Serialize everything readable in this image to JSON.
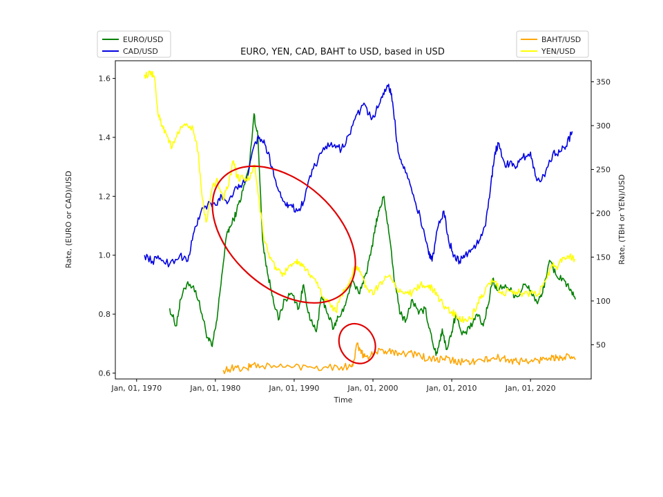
{
  "chart_data": {
    "type": "line",
    "title": "EURO, YEN, CAD, BAHT to USD, based in USD",
    "xlabel": "Time",
    "ylabel_left": "Rate, (EURO or CAD)/USD",
    "ylabel_right": "Rate, (TBH or YEN)/USD",
    "xlim": [
      1967.3,
      2027.7
    ],
    "ylim_left": [
      0.58,
      1.66
    ],
    "ylim_right": [
      11,
      374
    ],
    "x_ticks": [
      {
        "value": 1970,
        "label": "Jan, 01, 1970"
      },
      {
        "value": 1980,
        "label": "Jan, 01, 1980"
      },
      {
        "value": 1990,
        "label": "Jan, 01, 1990"
      },
      {
        "value": 2000,
        "label": "Jan, 01, 2000"
      },
      {
        "value": 2010,
        "label": "Jan, 01, 2010"
      },
      {
        "value": 2020,
        "label": "Jan, 01, 2020"
      }
    ],
    "y_left_ticks": [
      {
        "value": 0.6,
        "label": "0.6"
      },
      {
        "value": 0.8,
        "label": "0.8"
      },
      {
        "value": 1.0,
        "label": "1.0"
      },
      {
        "value": 1.2,
        "label": "1.2"
      },
      {
        "value": 1.4,
        "label": "1.4"
      },
      {
        "value": 1.6,
        "label": "1.6"
      }
    ],
    "y_right_ticks": [
      {
        "value": 50,
        "label": "50"
      },
      {
        "value": 100,
        "label": "100"
      },
      {
        "value": 150,
        "label": "150"
      },
      {
        "value": 200,
        "label": "200"
      },
      {
        "value": 250,
        "label": "250"
      },
      {
        "value": 300,
        "label": "300"
      },
      {
        "value": 350,
        "label": "350"
      }
    ],
    "grid": false,
    "legend_left": {
      "placement": "top-left, above plot",
      "entries": [
        "EURO/USD",
        "CAD/USD"
      ]
    },
    "legend_right": {
      "placement": "top-right, above plot",
      "entries": [
        "BAHT/USD",
        "YEN/USD"
      ]
    },
    "series": [
      {
        "name": "EURO/USD",
        "axis": "left",
        "color": "#008000",
        "x": [
          1974.2,
          1975.0,
          1975.6,
          1976.5,
          1977.5,
          1978.3,
          1979.0,
          1979.6,
          1980.2,
          1980.8,
          1981.5,
          1982.0,
          1982.7,
          1983.5,
          1984.3,
          1984.9,
          1985.4,
          1986.0,
          1986.6,
          1987.3,
          1988.0,
          1988.8,
          1989.7,
          1990.6,
          1991.2,
          1992.0,
          1992.8,
          1993.5,
          1994.3,
          1995.0,
          1995.6,
          1996.5,
          1997.3,
          1998.2,
          1999.0,
          1999.7,
          2000.3,
          2000.8,
          2001.4,
          2002.0,
          2002.8,
          2003.5,
          2004.2,
          2005.0,
          2005.8,
          2006.6,
          2007.3,
          2008.0,
          2008.4,
          2008.8,
          2009.3,
          2010.0,
          2010.5,
          2011.3,
          2012.3,
          2013.2,
          2014.0,
          2014.6,
          2015.2,
          2015.8,
          2016.8,
          2017.8,
          2018.4,
          2019.2,
          2020.0,
          2020.8,
          2021.4,
          2021.9,
          2022.5,
          2023.3,
          2024.2,
          2025.0,
          2025.7
        ],
        "values": [
          0.82,
          0.76,
          0.85,
          0.91,
          0.88,
          0.8,
          0.72,
          0.69,
          0.78,
          0.93,
          1.08,
          1.1,
          1.15,
          1.22,
          1.3,
          1.48,
          1.4,
          1.05,
          0.94,
          0.86,
          0.78,
          0.85,
          0.87,
          0.82,
          0.9,
          0.78,
          0.74,
          0.86,
          0.8,
          0.75,
          0.79,
          0.83,
          0.91,
          0.87,
          0.93,
          1.0,
          1.1,
          1.15,
          1.2,
          1.08,
          0.9,
          0.8,
          0.78,
          0.85,
          0.8,
          0.82,
          0.74,
          0.66,
          0.7,
          0.75,
          0.68,
          0.74,
          0.8,
          0.73,
          0.75,
          0.8,
          0.76,
          0.83,
          0.92,
          0.88,
          0.9,
          0.87,
          0.86,
          0.9,
          0.88,
          0.84,
          0.86,
          0.92,
          0.98,
          0.93,
          0.92,
          0.88,
          0.85
        ]
      },
      {
        "name": "CAD/USD",
        "axis": "left",
        "color": "#0000e0",
        "x": [
          1971.0,
          1972.0,
          1973.0,
          1974.2,
          1975.5,
          1976.5,
          1977.3,
          1978.2,
          1979.0,
          1980.0,
          1980.8,
          1981.6,
          1982.5,
          1983.3,
          1984.2,
          1985.0,
          1985.6,
          1986.4,
          1987.2,
          1988.0,
          1988.8,
          1989.5,
          1990.4,
          1991.2,
          1992.0,
          1993.0,
          1994.0,
          1995.0,
          1996.0,
          1997.0,
          1998.0,
          1999.0,
          1999.8,
          2000.6,
          2001.3,
          2002.0,
          2002.5,
          2003.2,
          2004.0,
          2005.0,
          2006.0,
          2007.0,
          2007.5,
          2008.3,
          2009.0,
          2009.6,
          2010.3,
          2011.0,
          2011.7,
          2012.6,
          2013.5,
          2014.3,
          2015.0,
          2015.5,
          2016.0,
          2016.8,
          2017.5,
          2018.2,
          2019.0,
          2020.0,
          2020.6,
          2021.3,
          2022.2,
          2022.9,
          2023.7,
          2024.5,
          2025.3
        ],
        "values": [
          1.0,
          0.98,
          0.99,
          0.97,
          1.0,
          0.98,
          1.08,
          1.15,
          1.17,
          1.17,
          1.2,
          1.18,
          1.23,
          1.23,
          1.28,
          1.38,
          1.4,
          1.37,
          1.3,
          1.22,
          1.18,
          1.17,
          1.15,
          1.18,
          1.27,
          1.32,
          1.37,
          1.37,
          1.36,
          1.41,
          1.48,
          1.51,
          1.46,
          1.5,
          1.55,
          1.58,
          1.52,
          1.35,
          1.3,
          1.21,
          1.13,
          1.02,
          0.98,
          1.1,
          1.15,
          1.05,
          1.0,
          0.98,
          1.0,
          1.02,
          1.05,
          1.1,
          1.25,
          1.35,
          1.38,
          1.3,
          1.32,
          1.3,
          1.33,
          1.35,
          1.27,
          1.25,
          1.3,
          1.35,
          1.35,
          1.37,
          1.42
        ]
      },
      {
        "name": "BAHT/USD",
        "axis": "right",
        "color": "#ffa500",
        "x": [
          1981.0,
          1982.0,
          1983.0,
          1984.0,
          1984.6,
          1986.0,
          1988.0,
          1990.0,
          1992.0,
          1994.0,
          1996.0,
          1997.2,
          1997.6,
          1998.0,
          1998.5,
          1999.0,
          2000.0,
          2001.0,
          2002.0,
          2003.0,
          2004.0,
          2005.0,
          2006.0,
          2007.0,
          2008.0,
          2009.0,
          2010.0,
          2011.0,
          2012.0,
          2013.0,
          2014.0,
          2015.0,
          2016.0,
          2017.0,
          2018.0,
          2019.0,
          2020.0,
          2021.0,
          2022.0,
          2022.8,
          2023.5,
          2024.3,
          2025.0,
          2025.7
        ],
        "values": [
          21,
          23,
          23,
          23,
          27,
          26,
          25,
          25,
          25,
          25,
          25,
          25,
          32,
          52,
          40,
          37,
          38,
          44,
          43,
          42,
          40,
          40,
          38,
          33,
          33,
          34,
          32,
          30,
          31,
          31,
          32,
          34,
          35,
          33,
          32,
          31,
          31,
          32,
          35,
          36,
          34,
          36,
          35,
          33
        ]
      },
      {
        "name": "YEN/USD",
        "axis": "right",
        "color": "#ffff00",
        "x": [
          1971.0,
          1971.8,
          1972.2,
          1972.8,
          1973.3,
          1973.8,
          1974.5,
          1975.5,
          1976.2,
          1977.2,
          1977.8,
          1978.3,
          1978.8,
          1979.5,
          1980.2,
          1981.0,
          1981.6,
          1982.3,
          1982.8,
          1983.5,
          1984.4,
          1985.0,
          1985.6,
          1986.2,
          1987.0,
          1987.8,
          1988.5,
          1989.3,
          1990.2,
          1990.8,
          1991.5,
          1992.3,
          1993.2,
          1994.0,
          1994.8,
          1995.3,
          1996.0,
          1997.0,
          1997.8,
          1998.5,
          1999.2,
          2000.0,
          2001.0,
          2002.0,
          2003.0,
          2004.0,
          2005.0,
          2006.0,
          2007.0,
          2007.7,
          2008.5,
          2009.3,
          2010.0,
          2010.8,
          2011.6,
          2012.5,
          2013.3,
          2014.0,
          2014.8,
          2015.5,
          2016.3,
          2017.2,
          2018.2,
          2019.2,
          2020.0,
          2021.0,
          2022.0,
          2022.8,
          2023.5,
          2024.3,
          2025.0,
          2025.6
        ],
        "values": [
          358,
          358,
          357,
          310,
          300,
          290,
          275,
          295,
          300,
          295,
          270,
          220,
          190,
          225,
          240,
          215,
          230,
          260,
          240,
          240,
          240,
          255,
          210,
          168,
          150,
          135,
          128,
          140,
          145,
          140,
          135,
          128,
          115,
          100,
          95,
          88,
          108,
          120,
          140,
          130,
          115,
          107,
          122,
          128,
          115,
          108,
          110,
          118,
          118,
          112,
          100,
          92,
          88,
          80,
          78,
          80,
          98,
          105,
          120,
          122,
          108,
          112,
          110,
          108,
          108,
          108,
          125,
          140,
          140,
          150,
          152,
          148
        ]
      }
    ],
    "annotations": [
      {
        "type": "ellipse",
        "color": "#e00000",
        "axis": "left",
        "cx": 1988.7,
        "cy": 1.07,
        "rx_years": 10.6,
        "ry": 0.18,
        "rotation": 42,
        "description": "larger hand-drawn red ellipse"
      },
      {
        "type": "ellipse",
        "color": "#e00000",
        "axis": "left",
        "cx": 1998.0,
        "cy": 0.7,
        "rx_years": 2.2,
        "ry": 0.07,
        "rotation": -30,
        "description": "smaller hand-drawn red ellipse"
      }
    ]
  }
}
